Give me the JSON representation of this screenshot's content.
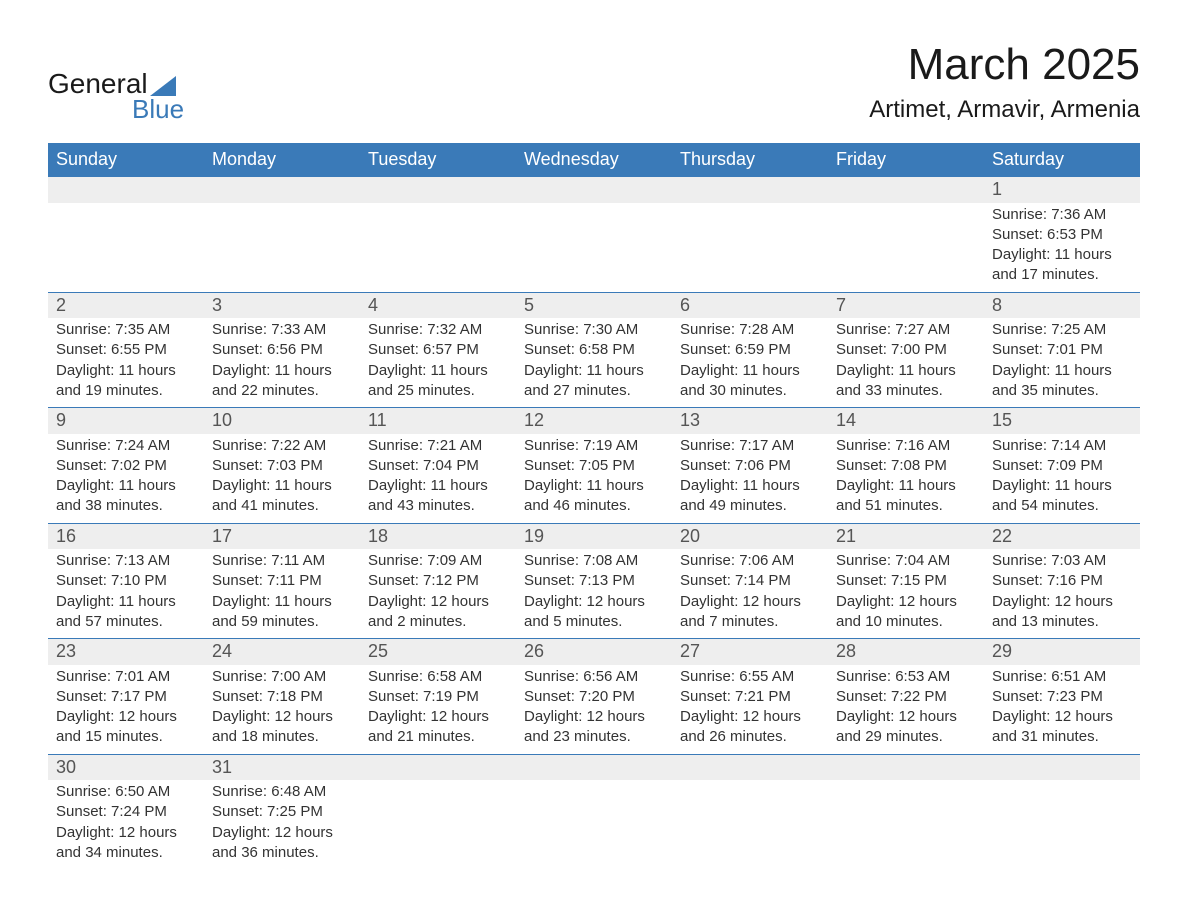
{
  "logo": {
    "text_general": "General",
    "text_blue": "Blue"
  },
  "title": "March 2025",
  "location": "Artimet, Armavir, Armenia",
  "colors": {
    "header_bg": "#3a7ab8",
    "header_fg": "#ffffff",
    "daynum_bg": "#eeeeee",
    "row_divider": "#3a7ab8",
    "body_text": "#333333",
    "page_bg": "#ffffff",
    "logo_accent": "#3a7ab8"
  },
  "typography": {
    "title_fontsize": 44,
    "location_fontsize": 24,
    "weekday_fontsize": 18,
    "daynum_fontsize": 18,
    "cell_fontsize": 15
  },
  "layout": {
    "columns": 7,
    "rows": 6,
    "first_day_column_index": 6
  },
  "weekdays": [
    "Sunday",
    "Monday",
    "Tuesday",
    "Wednesday",
    "Thursday",
    "Friday",
    "Saturday"
  ],
  "days": [
    {
      "n": 1,
      "sunrise": "7:36 AM",
      "sunset": "6:53 PM",
      "daylight": "11 hours and 17 minutes."
    },
    {
      "n": 2,
      "sunrise": "7:35 AM",
      "sunset": "6:55 PM",
      "daylight": "11 hours and 19 minutes."
    },
    {
      "n": 3,
      "sunrise": "7:33 AM",
      "sunset": "6:56 PM",
      "daylight": "11 hours and 22 minutes."
    },
    {
      "n": 4,
      "sunrise": "7:32 AM",
      "sunset": "6:57 PM",
      "daylight": "11 hours and 25 minutes."
    },
    {
      "n": 5,
      "sunrise": "7:30 AM",
      "sunset": "6:58 PM",
      "daylight": "11 hours and 27 minutes."
    },
    {
      "n": 6,
      "sunrise": "7:28 AM",
      "sunset": "6:59 PM",
      "daylight": "11 hours and 30 minutes."
    },
    {
      "n": 7,
      "sunrise": "7:27 AM",
      "sunset": "7:00 PM",
      "daylight": "11 hours and 33 minutes."
    },
    {
      "n": 8,
      "sunrise": "7:25 AM",
      "sunset": "7:01 PM",
      "daylight": "11 hours and 35 minutes."
    },
    {
      "n": 9,
      "sunrise": "7:24 AM",
      "sunset": "7:02 PM",
      "daylight": "11 hours and 38 minutes."
    },
    {
      "n": 10,
      "sunrise": "7:22 AM",
      "sunset": "7:03 PM",
      "daylight": "11 hours and 41 minutes."
    },
    {
      "n": 11,
      "sunrise": "7:21 AM",
      "sunset": "7:04 PM",
      "daylight": "11 hours and 43 minutes."
    },
    {
      "n": 12,
      "sunrise": "7:19 AM",
      "sunset": "7:05 PM",
      "daylight": "11 hours and 46 minutes."
    },
    {
      "n": 13,
      "sunrise": "7:17 AM",
      "sunset": "7:06 PM",
      "daylight": "11 hours and 49 minutes."
    },
    {
      "n": 14,
      "sunrise": "7:16 AM",
      "sunset": "7:08 PM",
      "daylight": "11 hours and 51 minutes."
    },
    {
      "n": 15,
      "sunrise": "7:14 AM",
      "sunset": "7:09 PM",
      "daylight": "11 hours and 54 minutes."
    },
    {
      "n": 16,
      "sunrise": "7:13 AM",
      "sunset": "7:10 PM",
      "daylight": "11 hours and 57 minutes."
    },
    {
      "n": 17,
      "sunrise": "7:11 AM",
      "sunset": "7:11 PM",
      "daylight": "11 hours and 59 minutes."
    },
    {
      "n": 18,
      "sunrise": "7:09 AM",
      "sunset": "7:12 PM",
      "daylight": "12 hours and 2 minutes."
    },
    {
      "n": 19,
      "sunrise": "7:08 AM",
      "sunset": "7:13 PM",
      "daylight": "12 hours and 5 minutes."
    },
    {
      "n": 20,
      "sunrise": "7:06 AM",
      "sunset": "7:14 PM",
      "daylight": "12 hours and 7 minutes."
    },
    {
      "n": 21,
      "sunrise": "7:04 AM",
      "sunset": "7:15 PM",
      "daylight": "12 hours and 10 minutes."
    },
    {
      "n": 22,
      "sunrise": "7:03 AM",
      "sunset": "7:16 PM",
      "daylight": "12 hours and 13 minutes."
    },
    {
      "n": 23,
      "sunrise": "7:01 AM",
      "sunset": "7:17 PM",
      "daylight": "12 hours and 15 minutes."
    },
    {
      "n": 24,
      "sunrise": "7:00 AM",
      "sunset": "7:18 PM",
      "daylight": "12 hours and 18 minutes."
    },
    {
      "n": 25,
      "sunrise": "6:58 AM",
      "sunset": "7:19 PM",
      "daylight": "12 hours and 21 minutes."
    },
    {
      "n": 26,
      "sunrise": "6:56 AM",
      "sunset": "7:20 PM",
      "daylight": "12 hours and 23 minutes."
    },
    {
      "n": 27,
      "sunrise": "6:55 AM",
      "sunset": "7:21 PM",
      "daylight": "12 hours and 26 minutes."
    },
    {
      "n": 28,
      "sunrise": "6:53 AM",
      "sunset": "7:22 PM",
      "daylight": "12 hours and 29 minutes."
    },
    {
      "n": 29,
      "sunrise": "6:51 AM",
      "sunset": "7:23 PM",
      "daylight": "12 hours and 31 minutes."
    },
    {
      "n": 30,
      "sunrise": "6:50 AM",
      "sunset": "7:24 PM",
      "daylight": "12 hours and 34 minutes."
    },
    {
      "n": 31,
      "sunrise": "6:48 AM",
      "sunset": "7:25 PM",
      "daylight": "12 hours and 36 minutes."
    }
  ],
  "labels": {
    "sunrise": "Sunrise:",
    "sunset": "Sunset:",
    "daylight": "Daylight:"
  }
}
